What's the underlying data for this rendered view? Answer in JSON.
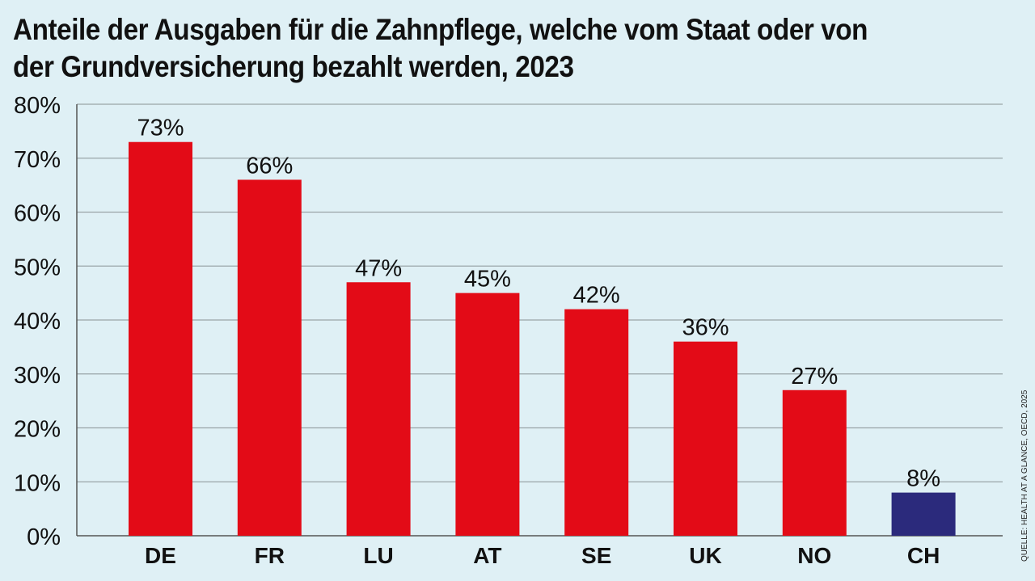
{
  "chart_data": {
    "type": "bar",
    "title": "Anteile der Ausgaben für die Zahnpflege, welche vom Staat oder von der Grundversicherung bezahlt werden, 2023",
    "categories": [
      "DE",
      "FR",
      "LU",
      "AT",
      "SE",
      "UK",
      "NO",
      "CH"
    ],
    "values": [
      73,
      66,
      47,
      45,
      42,
      36,
      27,
      8
    ],
    "data_labels": [
      "73%",
      "66%",
      "47%",
      "45%",
      "42%",
      "36%",
      "27%",
      "8%"
    ],
    "colors": [
      "#e30b17",
      "#e30b17",
      "#e30b17",
      "#e30b17",
      "#e30b17",
      "#e30b17",
      "#e30b17",
      "#2b2a7c"
    ],
    "ylim": [
      0,
      80
    ],
    "yticks": [
      0,
      10,
      20,
      30,
      40,
      50,
      60,
      70,
      80
    ],
    "ytick_labels": [
      "0%",
      "10%",
      "20%",
      "30%",
      "40%",
      "50%",
      "60%",
      "70%",
      "80%"
    ],
    "xlabel": "",
    "ylabel": "",
    "grid": true,
    "source": "QUELLE: HEALTH AT A GLANCE, OECD, 2025"
  }
}
